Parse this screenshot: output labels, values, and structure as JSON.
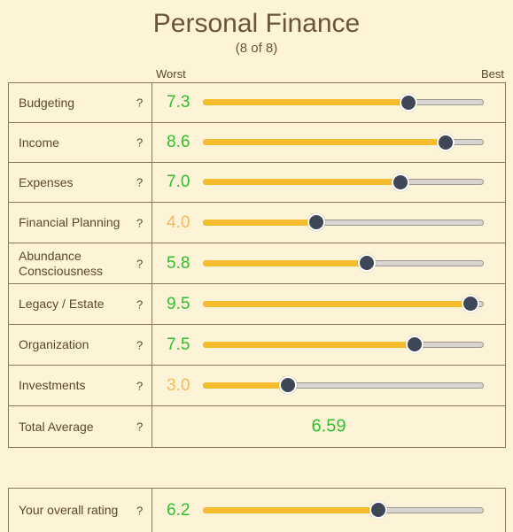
{
  "header": {
    "title": "Personal Finance",
    "subtitle": "(8 of 8)"
  },
  "scale": {
    "worst": "Worst",
    "best": "Best"
  },
  "help_symbol": "?",
  "colors": {
    "good": "#2fbf2f",
    "warn": "#f5b95a",
    "fill": "#f5bd2e",
    "knob": "#3f4756"
  },
  "categories": [
    {
      "label": "Budgeting",
      "value": "7.3",
      "level": 7.3,
      "status": "good"
    },
    {
      "label": "Income",
      "value": "8.6",
      "level": 8.6,
      "status": "good"
    },
    {
      "label": "Expenses",
      "value": "7.0",
      "level": 7.0,
      "status": "good"
    },
    {
      "label": "Financial Planning",
      "value": "4.0",
      "level": 4.0,
      "status": "warn"
    },
    {
      "label": "Abundance Consciousness",
      "value": "5.8",
      "level": 5.8,
      "status": "good"
    },
    {
      "label": "Legacy / Estate",
      "value": "9.5",
      "level": 9.5,
      "status": "good"
    },
    {
      "label": "Organization",
      "value": "7.5",
      "level": 7.5,
      "status": "good"
    },
    {
      "label": "Investments",
      "value": "3.0",
      "level": 3.0,
      "status": "warn"
    }
  ],
  "total": {
    "label": "Total Average",
    "value": "6.59"
  },
  "overall": {
    "label": "Your overall rating",
    "value": "6.2",
    "level": 6.2,
    "status": "good"
  }
}
